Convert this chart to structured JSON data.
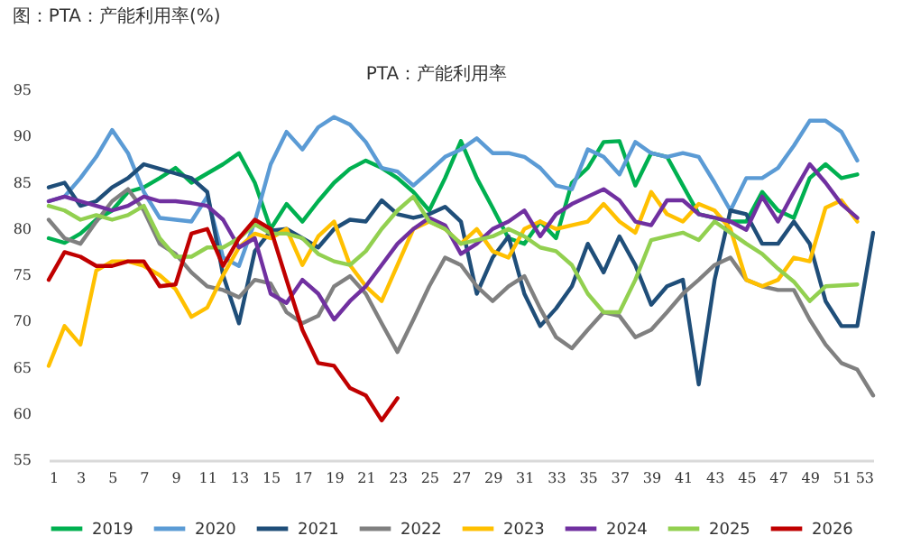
{
  "chart_data": {
    "type": "line",
    "title": "图：PTA：产能利用率(%)",
    "subtitle": "PTA：产能利用率",
    "x": [
      1,
      2,
      3,
      4,
      5,
      6,
      7,
      8,
      9,
      10,
      11,
      12,
      13,
      14,
      15,
      16,
      17,
      18,
      19,
      20,
      21,
      22,
      23,
      24,
      25,
      26,
      27,
      28,
      29,
      30,
      31,
      32,
      33,
      34,
      35,
      36,
      37,
      38,
      39,
      40,
      41,
      42,
      43,
      44,
      45,
      46,
      47,
      48,
      49,
      50,
      51,
      52,
      53
    ],
    "xlim": [
      1,
      53
    ],
    "xticks": [
      1,
      3,
      5,
      7,
      9,
      11,
      13,
      15,
      17,
      19,
      21,
      23,
      25,
      27,
      29,
      31,
      33,
      35,
      37,
      39,
      41,
      43,
      45,
      47,
      49,
      51,
      53
    ],
    "ylim": [
      55,
      95
    ],
    "yticks": [
      55,
      60,
      65,
      70,
      75,
      80,
      85,
      90,
      95
    ],
    "grid": false,
    "legend": "bottom",
    "marker": "none",
    "line_style": "solid",
    "series": [
      {
        "name": "2019",
        "color": "#00b050",
        "values": [
          79,
          78.5,
          79.5,
          81,
          82,
          84,
          84.5,
          85.5,
          86.6,
          85,
          86,
          87,
          88.2,
          85,
          80,
          82.7,
          80.8,
          83,
          85,
          86.5,
          87.4,
          86.6,
          85.5,
          84,
          82,
          85.5,
          89.5,
          85.5,
          82.3,
          79,
          78.4,
          80.8,
          79,
          85,
          86.6,
          89.4,
          89.5,
          84.7,
          88.2,
          87.8,
          84.7,
          81.6,
          81.2,
          80.8,
          80.8,
          84,
          82,
          81.2,
          85.5,
          87,
          85.5,
          85.9,
          null
        ]
      },
      {
        "name": "2020",
        "color": "#5b9bd5",
        "values": [
          83,
          83.5,
          85.5,
          87.8,
          90.7,
          88.2,
          84,
          81.2,
          81,
          80.8,
          83.5,
          76.9,
          76,
          80.8,
          87,
          90.5,
          88.6,
          91,
          92.1,
          91.3,
          89.4,
          86.6,
          86.2,
          84.7,
          86.2,
          87.8,
          88.6,
          89.8,
          88.2,
          88.2,
          87.8,
          86.6,
          84.7,
          84.3,
          88.6,
          87.8,
          85.9,
          89.4,
          88.2,
          87.8,
          88.2,
          87.8,
          85,
          82,
          85.5,
          85.5,
          86.6,
          89,
          91.7,
          91.7,
          90.5,
          87.4,
          null
        ]
      },
      {
        "name": "2021",
        "color": "#1f4e79",
        "values": [
          84.5,
          85,
          82.5,
          83,
          84.5,
          85.5,
          87,
          86.5,
          86,
          85.5,
          84,
          75,
          69.8,
          77.6,
          79.8,
          80,
          79,
          78,
          80,
          81,
          80.8,
          83.1,
          81.6,
          81.2,
          81.6,
          82.4,
          80.8,
          73,
          76.9,
          79.2,
          73,
          69.5,
          71.4,
          73.8,
          78.4,
          75.3,
          79.2,
          76.1,
          71.8,
          73.8,
          74.5,
          63.2,
          74.5,
          82,
          81.6,
          78.4,
          78.4,
          80.8,
          78.4,
          72.2,
          69.5,
          69.5,
          79.6
        ]
      },
      {
        "name": "2022",
        "color": "#808080",
        "values": [
          81,
          79,
          78.4,
          80.8,
          83,
          84.3,
          82,
          78.4,
          77.3,
          75.3,
          73.8,
          73.4,
          72.6,
          74.5,
          74.1,
          71,
          69.8,
          70.6,
          73.8,
          74.9,
          73,
          69.8,
          66.7,
          70.2,
          73.8,
          76.9,
          76.1,
          73.8,
          72.2,
          73.8,
          74.9,
          71.4,
          68.3,
          67.1,
          69.1,
          71,
          70.6,
          68.3,
          69.1,
          71,
          73,
          74.5,
          76.1,
          76.9,
          74.5,
          73.8,
          73.4,
          73.4,
          70.2,
          67.5,
          65.5,
          64.8,
          62
        ]
      },
      {
        "name": "2023",
        "color": "#ffc000",
        "values": [
          65.2,
          69.5,
          67.5,
          75.5,
          76.5,
          76.5,
          76,
          75,
          73.5,
          70.5,
          71.5,
          75,
          78,
          79.5,
          79,
          80,
          76.1,
          79.2,
          80.8,
          76.1,
          73.8,
          72.2,
          76.1,
          80,
          80.8,
          80,
          78.4,
          80,
          77.6,
          76.9,
          80,
          80.8,
          80,
          80.4,
          80.8,
          82.7,
          80.8,
          79.6,
          84,
          81.6,
          80.8,
          82.7,
          82,
          80,
          74.5,
          73.8,
          74.5,
          76.9,
          76.5,
          82.3,
          83.1,
          80.8,
          null
        ]
      },
      {
        "name": "2024",
        "color": "#7030a0",
        "values": [
          83,
          83.5,
          83,
          82.5,
          82,
          82.5,
          83.5,
          83,
          83,
          82.8,
          82.5,
          81,
          78,
          79,
          73,
          72,
          74.5,
          73,
          70.2,
          72.2,
          73.8,
          76.1,
          78.4,
          80,
          81.2,
          80.4,
          77.3,
          78.4,
          80,
          80.8,
          82,
          79.2,
          81.6,
          82.7,
          83.5,
          84.3,
          83.1,
          80.8,
          80.4,
          83.1,
          83.1,
          81.6,
          81.2,
          80.8,
          79.9,
          83.5,
          80.8,
          84,
          87,
          85,
          82.7,
          81.2,
          null
        ]
      },
      {
        "name": "2025",
        "color": "#92d050",
        "values": [
          82.5,
          82,
          81,
          81.5,
          81,
          81.5,
          82.5,
          79,
          77,
          77,
          78,
          78,
          79,
          80.5,
          79.5,
          79.5,
          79,
          77.3,
          76.5,
          76.1,
          77.6,
          80,
          82,
          83.5,
          80.8,
          80,
          78.4,
          78.8,
          79.2,
          80,
          79.2,
          78,
          77.6,
          76.1,
          73,
          71,
          71,
          74.5,
          78.8,
          79.2,
          79.6,
          78.8,
          80.8,
          79.6,
          78.4,
          77.3,
          75.7,
          74.3,
          72.2,
          73.8,
          73.9,
          74,
          null
        ]
      },
      {
        "name": "2026",
        "color": "#c00000",
        "values": [
          74.5,
          77.5,
          77,
          76,
          76,
          76.5,
          76.5,
          73.8,
          74,
          79.5,
          80,
          76,
          79,
          81,
          80,
          74.5,
          69.1,
          65.5,
          65.2,
          62.8,
          62,
          59.3,
          61.7,
          null,
          null,
          null,
          null,
          null,
          null,
          null,
          null,
          null,
          null,
          null,
          null,
          null,
          null,
          null,
          null,
          null,
          null,
          null,
          null,
          null,
          null,
          null,
          null,
          null,
          null,
          null,
          null,
          null,
          null
        ]
      }
    ]
  }
}
